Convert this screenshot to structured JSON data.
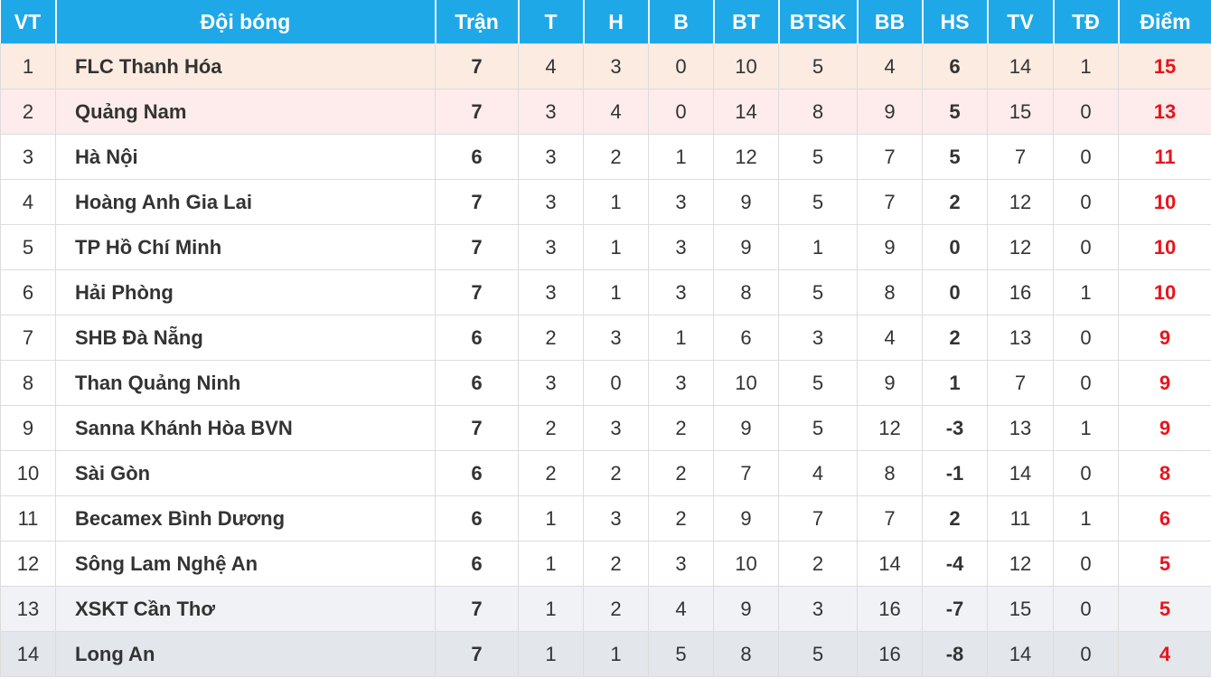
{
  "headers": [
    "VT",
    "Đội bóng",
    "Trận",
    "T",
    "H",
    "B",
    "BT",
    "BTSK",
    "BB",
    "HS",
    "TV",
    "TĐ",
    "Điểm"
  ],
  "colors": {
    "header_bg": "#1fa8e8",
    "points": "#e8141c",
    "row1_bg": "#fbebe1",
    "row2_bg": "#fdeceb",
    "row13_bg": "#f0f2f5",
    "row14_bg": "#e3e6ea"
  },
  "rows": [
    [
      "1",
      "FLC Thanh Hóa",
      "7",
      "4",
      "3",
      "0",
      "10",
      "5",
      "4",
      "6",
      "14",
      "1",
      "15"
    ],
    [
      "2",
      "Quảng Nam",
      "7",
      "3",
      "4",
      "0",
      "14",
      "8",
      "9",
      "5",
      "15",
      "0",
      "13"
    ],
    [
      "3",
      "Hà Nội",
      "6",
      "3",
      "2",
      "1",
      "12",
      "5",
      "7",
      "5",
      "7",
      "0",
      "11"
    ],
    [
      "4",
      "Hoàng Anh Gia Lai",
      "7",
      "3",
      "1",
      "3",
      "9",
      "5",
      "7",
      "2",
      "12",
      "0",
      "10"
    ],
    [
      "5",
      "TP Hồ Chí Minh",
      "7",
      "3",
      "1",
      "3",
      "9",
      "1",
      "9",
      "0",
      "12",
      "0",
      "10"
    ],
    [
      "6",
      "Hải Phòng",
      "7",
      "3",
      "1",
      "3",
      "8",
      "5",
      "8",
      "0",
      "16",
      "1",
      "10"
    ],
    [
      "7",
      "SHB Đà Nẵng",
      "6",
      "2",
      "3",
      "1",
      "6",
      "3",
      "4",
      "2",
      "13",
      "0",
      "9"
    ],
    [
      "8",
      "Than Quảng Ninh",
      "6",
      "3",
      "0",
      "3",
      "10",
      "5",
      "9",
      "1",
      "7",
      "0",
      "9"
    ],
    [
      "9",
      "Sanna Khánh Hòa BVN",
      "7",
      "2",
      "3",
      "2",
      "9",
      "5",
      "12",
      "-3",
      "13",
      "1",
      "9"
    ],
    [
      "10",
      "Sài Gòn",
      "6",
      "2",
      "2",
      "2",
      "7",
      "4",
      "8",
      "-1",
      "14",
      "0",
      "8"
    ],
    [
      "11",
      "Becamex Bình Dương",
      "6",
      "1",
      "3",
      "2",
      "9",
      "7",
      "7",
      "2",
      "11",
      "1",
      "6"
    ],
    [
      "12",
      "Sông Lam Nghệ An",
      "6",
      "1",
      "2",
      "3",
      "10",
      "2",
      "14",
      "-4",
      "12",
      "0",
      "5"
    ],
    [
      "13",
      "XSKT Cần Thơ",
      "7",
      "1",
      "2",
      "4",
      "9",
      "3",
      "16",
      "-7",
      "15",
      "0",
      "5"
    ],
    [
      "14",
      "Long An",
      "7",
      "1",
      "1",
      "5",
      "8",
      "5",
      "16",
      "-8",
      "14",
      "0",
      "4"
    ]
  ]
}
